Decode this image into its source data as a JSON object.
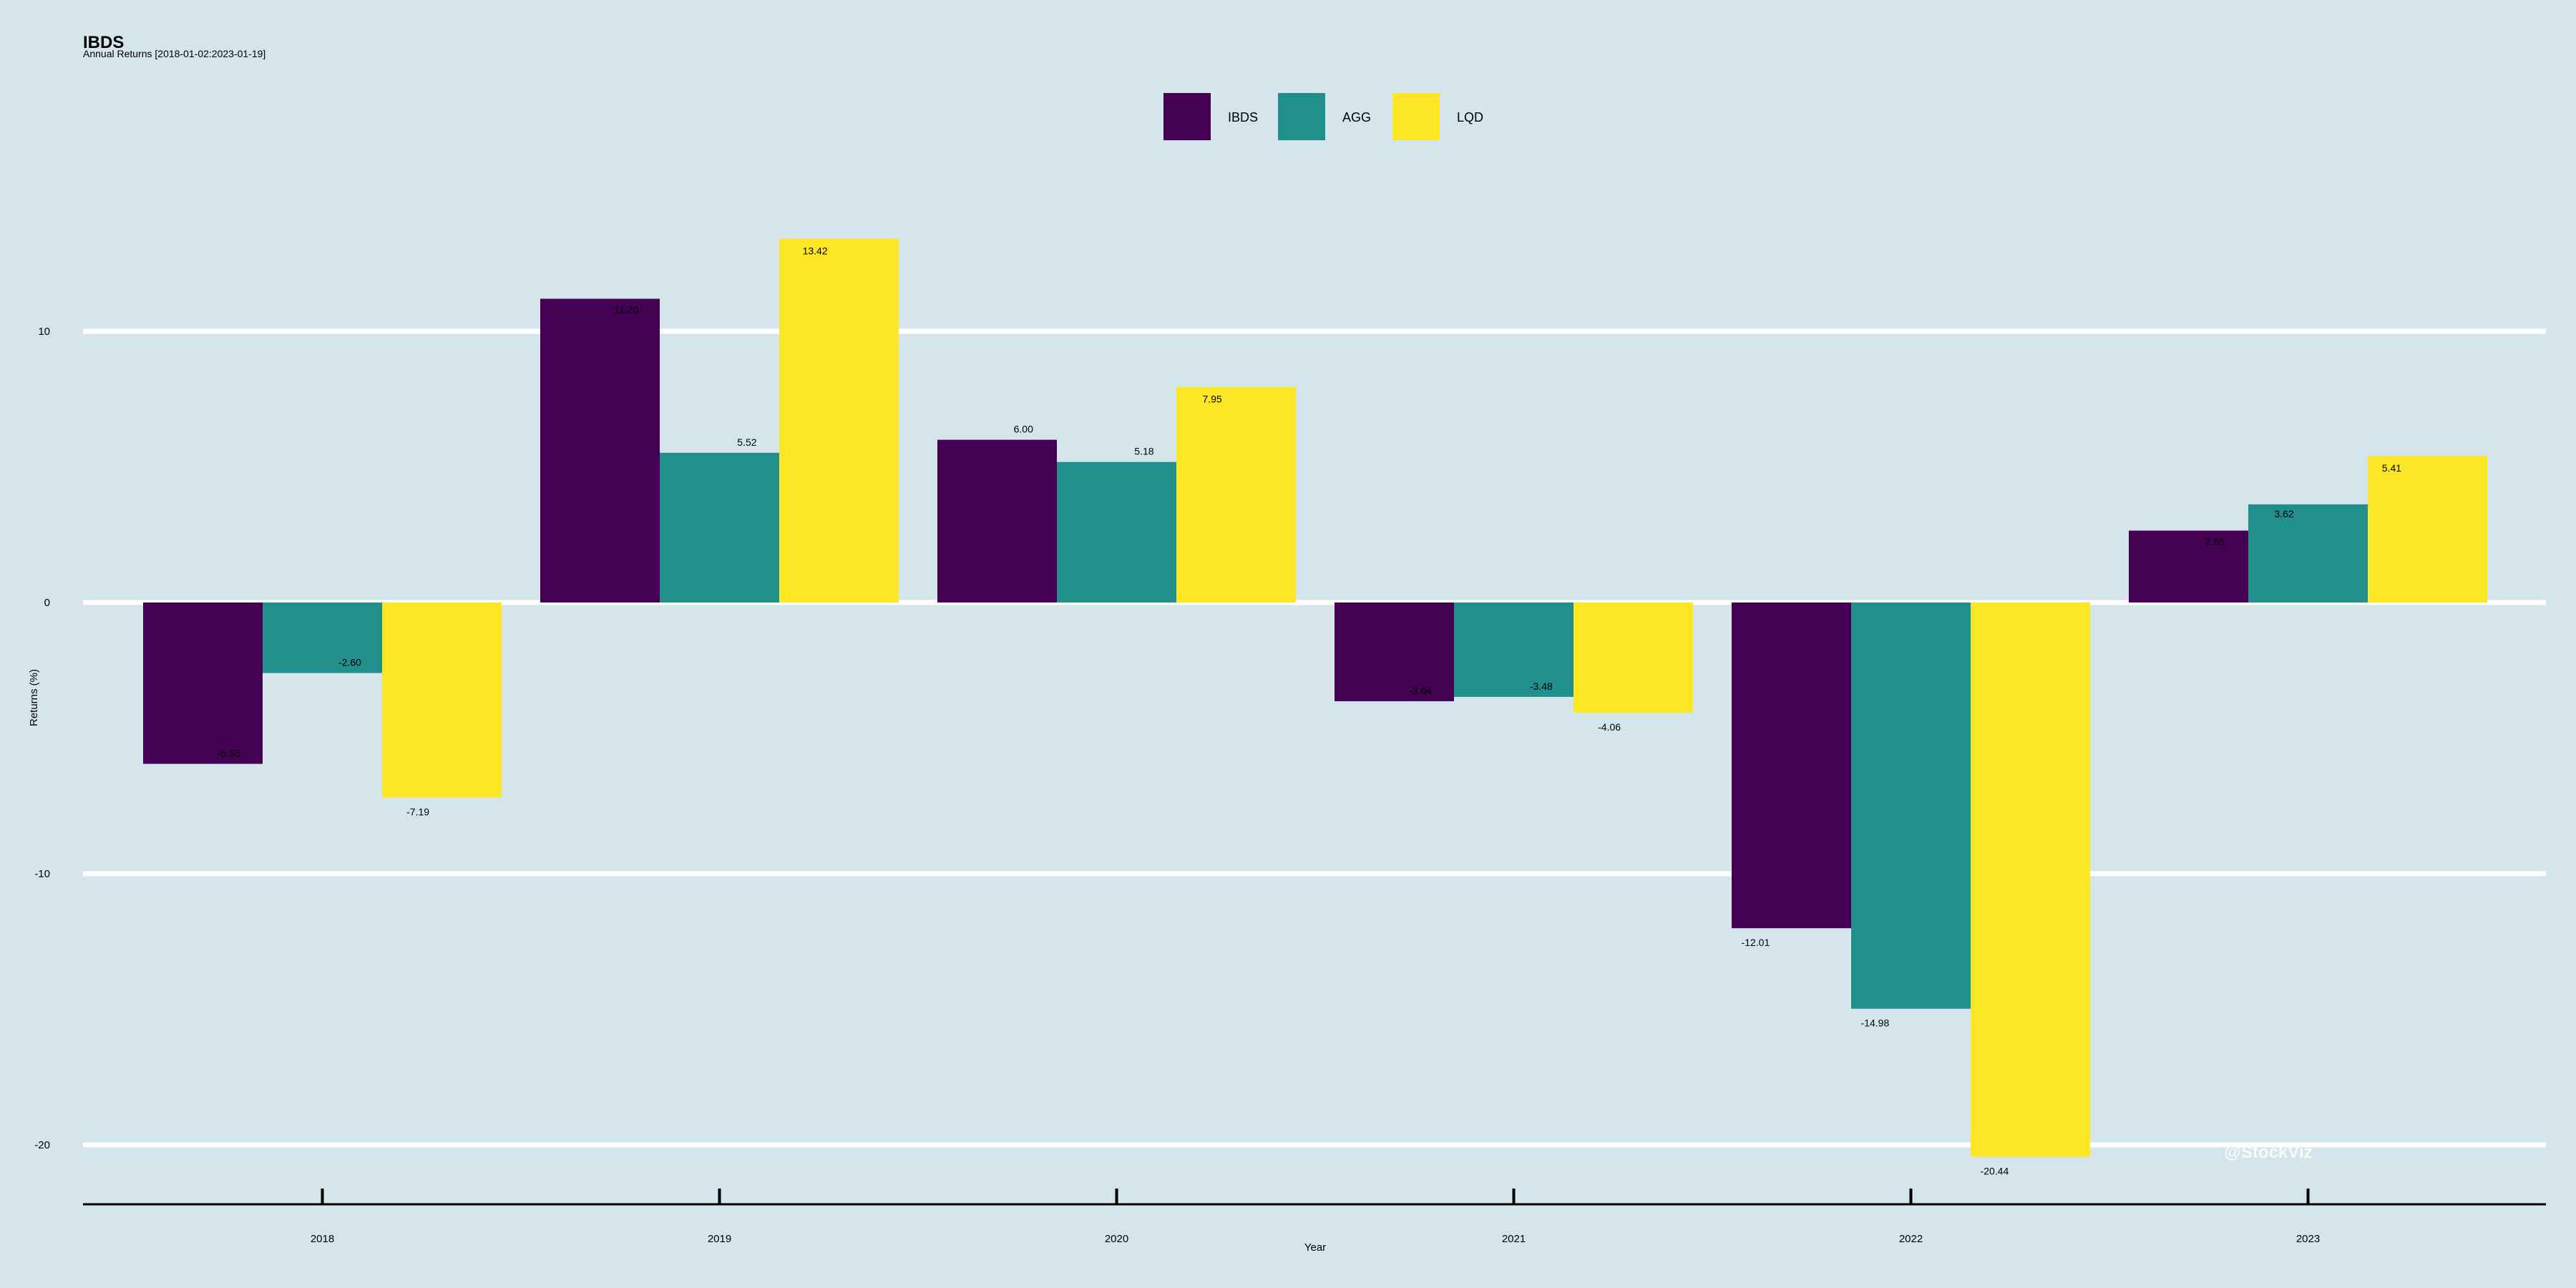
{
  "chart_data": {
    "type": "bar",
    "title": "IBDS",
    "subtitle": "Annual Returns [2018-01-02:2023-01-19]",
    "xlabel": "Year",
    "ylabel": "Returns (%)",
    "categories": [
      "2018",
      "2019",
      "2020",
      "2021",
      "2022",
      "2023"
    ],
    "series": [
      {
        "name": "IBDS",
        "color": "#440154",
        "values": [
          -5.95,
          11.2,
          6.0,
          -3.64,
          -12.01,
          2.65
        ],
        "labels": [
          "-5.95",
          "11.20",
          "6.00",
          "-3.64",
          "-12.01",
          "2.65"
        ]
      },
      {
        "name": "AGG",
        "color": "#21908c",
        "values": [
          -2.6,
          5.52,
          5.18,
          -3.48,
          -14.98,
          3.62
        ],
        "labels": [
          "-2.60",
          "5.52",
          "5.18",
          "-3.48",
          "-14.98",
          "3.62"
        ]
      },
      {
        "name": "LQD",
        "color": "#fde725",
        "values": [
          -7.19,
          13.42,
          7.95,
          -4.06,
          -20.44,
          5.41
        ],
        "labels": [
          "-7.19",
          "13.42",
          "7.95",
          "-4.06",
          "-20.44",
          "5.41"
        ]
      }
    ],
    "yticks": [
      10,
      0,
      -10,
      -20
    ],
    "ytick_labels": [
      "10",
      "0",
      "-10",
      "-20"
    ],
    "ylim": [
      -22.2,
      22.0
    ],
    "grid": "horizontal",
    "legend_position": "top-center",
    "watermark": "@StockViz",
    "colors": {
      "background": "#d5e5ec",
      "gridline": "#ffffff",
      "axis": "#000000"
    }
  }
}
